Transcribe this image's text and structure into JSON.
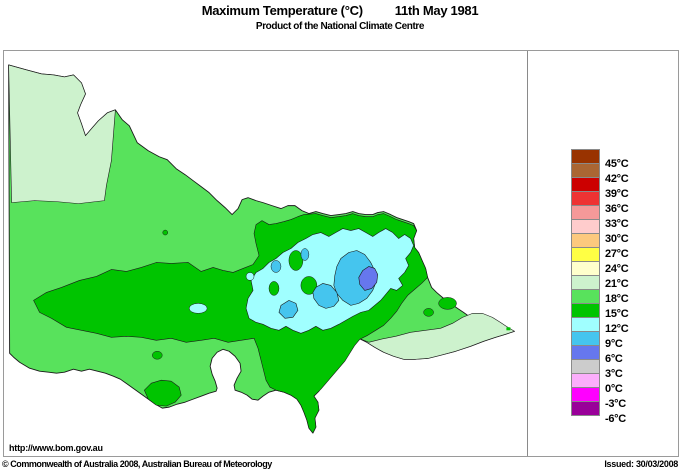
{
  "header": {
    "title": "Maximum Temperature (°C)",
    "date": "11th May 1981",
    "subtitle": "Product of the National Climate Centre"
  },
  "map": {
    "region_name": "Victoria",
    "url_label": "http://www.bom.gov.au"
  },
  "palette": {
    "sea": "#ffffff",
    "outline": "#1a1a1a",
    "pale_green_18_21": "#cdf2cd",
    "green_15_18": "#58e25c",
    "dark_green_12_15": "#00c400",
    "light_cyan_9_12": "#a0ffff",
    "cyan_6_9": "#45c5ee",
    "blue_3_6": "#6677ee"
  },
  "legend": {
    "swatches": [
      {
        "name": "above-45c",
        "color": "#993300"
      },
      {
        "name": "42-45c",
        "color": "#aa6633"
      },
      {
        "name": "39-42c",
        "color": "#cc0000"
      },
      {
        "name": "36-39c",
        "color": "#ee3333"
      },
      {
        "name": "33-36c",
        "color": "#f59999"
      },
      {
        "name": "30-33c",
        "color": "#ffcccc"
      },
      {
        "name": "27-30c",
        "color": "#fcc97e"
      },
      {
        "name": "24-27c",
        "color": "#ffff44"
      },
      {
        "name": "21-24c",
        "color": "#ffffcc"
      },
      {
        "name": "18-21c",
        "color": "#cdf2cd"
      },
      {
        "name": "15-18c",
        "color": "#58e25c"
      },
      {
        "name": "12-15c",
        "color": "#00c400"
      },
      {
        "name": "9-12c",
        "color": "#a0ffff"
      },
      {
        "name": "6-9c",
        "color": "#45c5ee"
      },
      {
        "name": "3-6c",
        "color": "#6677ee"
      },
      {
        "name": "0-3c",
        "color": "#cccccc"
      },
      {
        "name": "neg3-0c",
        "color": "#fbaefb"
      },
      {
        "name": "neg6-neg3c",
        "color": "#ff00ff"
      },
      {
        "name": "below-neg6c",
        "color": "#990099"
      }
    ],
    "tick_labels": [
      "45°C",
      "42°C",
      "39°C",
      "36°C",
      "33°C",
      "30°C",
      "27°C",
      "24°C",
      "21°C",
      "18°C",
      "15°C",
      "12°C",
      "9°C",
      "6°C",
      "3°C",
      "0°C",
      "-3°C",
      "-6°C"
    ]
  },
  "footer": {
    "copyright": "© Commonwealth of Australia 2008, Australian Bureau of Meteorology",
    "issued": "Issued: 30/03/2008"
  }
}
